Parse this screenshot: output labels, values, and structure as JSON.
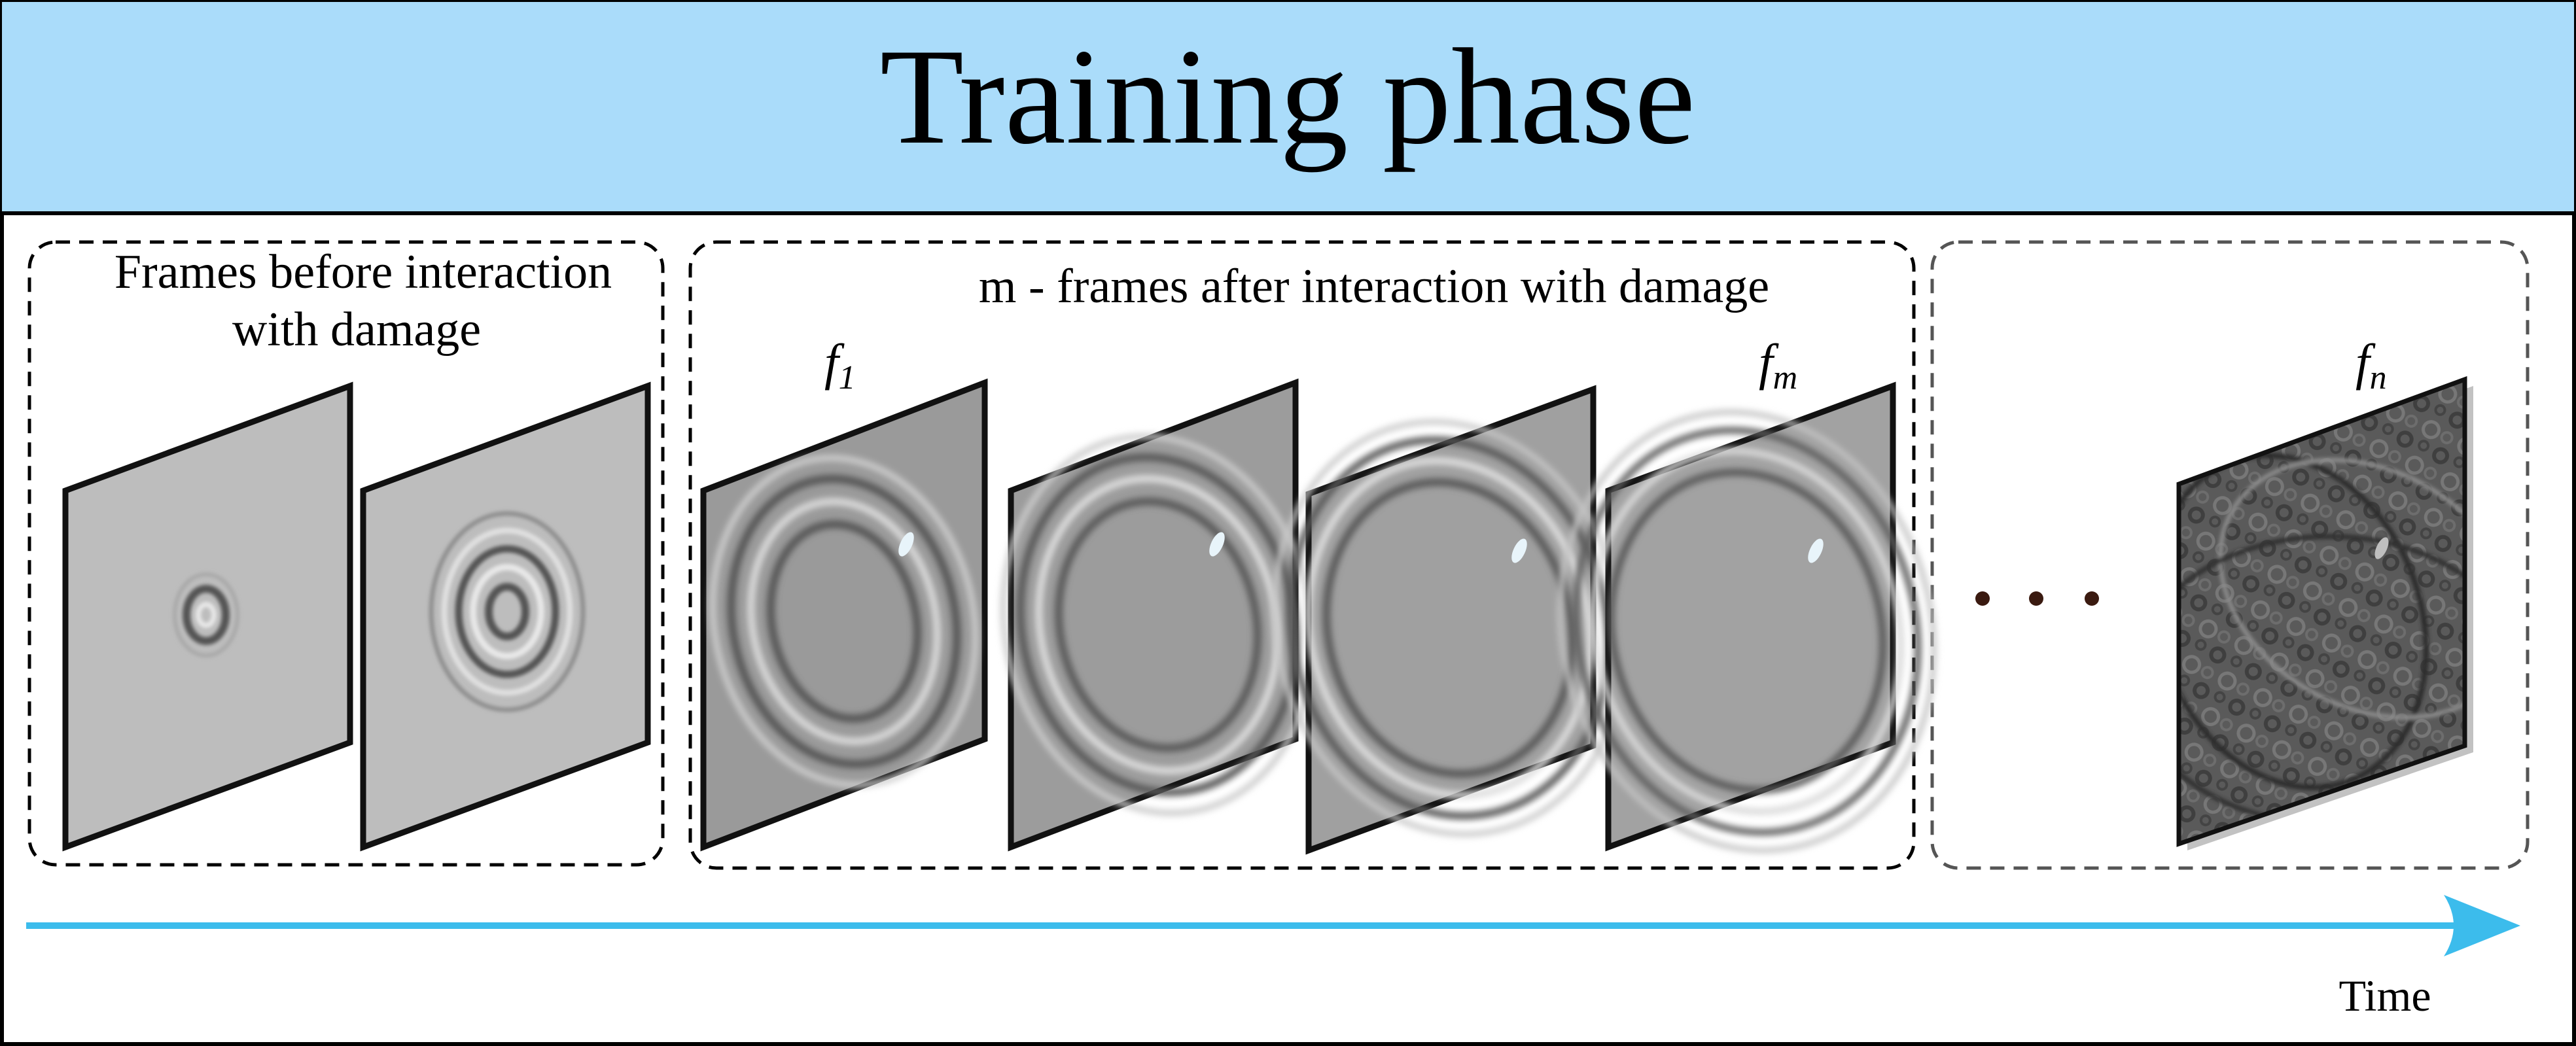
{
  "header": {
    "title": "Training phase"
  },
  "groups": {
    "before": {
      "label_line1": "Frames before interaction",
      "label_line2": "with damage"
    },
    "after": {
      "label": "m - frames after interaction with damage"
    }
  },
  "frame_labels": {
    "f1": {
      "base": "f",
      "sub": "1"
    },
    "fm": {
      "base": "f",
      "sub": "m"
    },
    "fn": {
      "base": "f",
      "sub": "n"
    }
  },
  "axis": {
    "time_label": "Time"
  },
  "colors": {
    "header_bg": "#aadcfa",
    "arrow": "#3cbcec",
    "border": "#000000"
  }
}
